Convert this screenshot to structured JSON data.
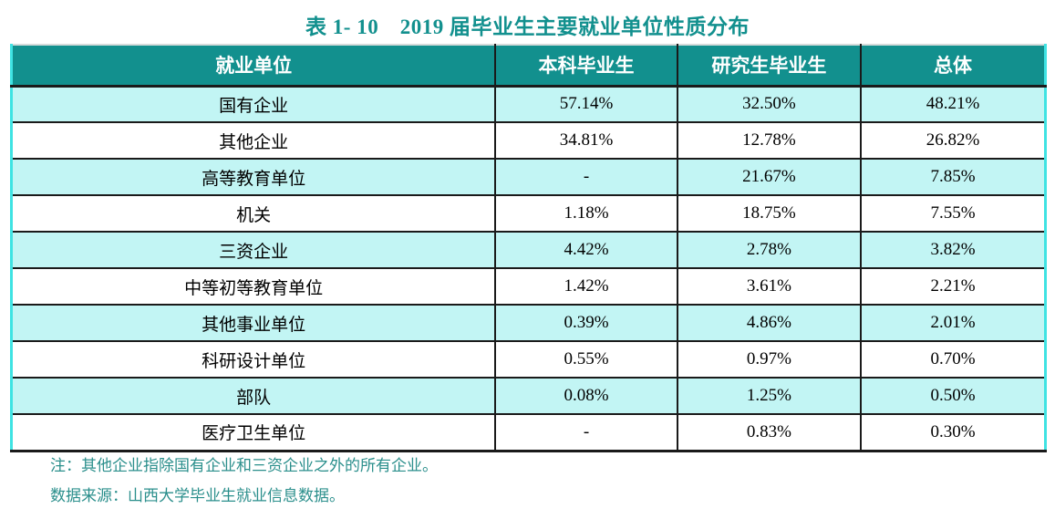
{
  "title": "表 1- 10　2019 届毕业生主要就业单位性质分布",
  "table": {
    "columns": [
      "就业单位",
      "本科毕业生",
      "研究生毕业生",
      "总体"
    ],
    "rows": [
      [
        "国有企业",
        "57.14%",
        "32.50%",
        "48.21%"
      ],
      [
        "其他企业",
        "34.81%",
        "12.78%",
        "26.82%"
      ],
      [
        "高等教育单位",
        "-",
        "21.67%",
        "7.85%"
      ],
      [
        "机关",
        "1.18%",
        "18.75%",
        "7.55%"
      ],
      [
        "三资企业",
        "4.42%",
        "2.78%",
        "3.82%"
      ],
      [
        "中等初等教育单位",
        "1.42%",
        "3.61%",
        "2.21%"
      ],
      [
        "其他事业单位",
        "0.39%",
        "4.86%",
        "2.01%"
      ],
      [
        "科研设计单位",
        "0.55%",
        "0.97%",
        "0.70%"
      ],
      [
        "部队",
        "0.08%",
        "1.25%",
        "0.50%"
      ],
      [
        "医疗卫生单位",
        "-",
        "0.83%",
        "0.30%"
      ]
    ]
  },
  "notes": {
    "note": "注：其他企业指除国有企业和三资企业之外的所有企业。",
    "source": "数据来源：山西大学毕业生就业信息数据。"
  },
  "colors": {
    "header_teal": "#12908E",
    "row_cyan": "#C2F5F4",
    "outer_border_cyan": "#3FE3E3",
    "grid_line": "#1A1A1A",
    "title_text": "#12908E",
    "note_text": "#2B8F8C"
  },
  "chart_data": {
    "type": "table",
    "title": "表 1- 10　2019 届毕业生主要就业单位性质分布",
    "categories": [
      "国有企业",
      "其他企业",
      "高等教育单位",
      "机关",
      "三资企业",
      "中等初等教育单位",
      "其他事业单位",
      "科研设计单位",
      "部队",
      "医疗卫生单位"
    ],
    "series": [
      {
        "name": "本科毕业生",
        "values": [
          57.14,
          34.81,
          null,
          1.18,
          4.42,
          1.42,
          0.39,
          0.55,
          0.08,
          null
        ]
      },
      {
        "name": "研究生毕业生",
        "values": [
          32.5,
          12.78,
          21.67,
          18.75,
          2.78,
          3.61,
          4.86,
          0.97,
          1.25,
          0.83
        ]
      },
      {
        "name": "总体",
        "values": [
          48.21,
          26.82,
          7.85,
          7.55,
          3.82,
          2.21,
          2.01,
          0.7,
          0.5,
          0.3
        ]
      }
    ],
    "unit": "%"
  }
}
